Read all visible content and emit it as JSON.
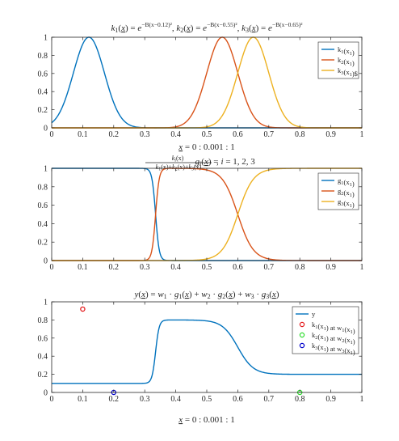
{
  "colors": {
    "blue": "#0072BD",
    "orange": "#D95319",
    "yellow": "#EDB120",
    "red_marker": "#E41A1C",
    "green_marker": "#2CDC2C",
    "blue_marker": "#0000CC",
    "axis": "#262626"
  },
  "chart_data": [
    {
      "type": "line",
      "title": "k1(x̲) = e^−B(x̲−0.12)², k2(x̲) = e^−B(x̲−0.55)², k3(x̲) = e^−B(x̲−0.65)²",
      "xlabel": "x̲ = 0 : 0.001 : 1",
      "ylabel": "",
      "xlim": [
        0,
        1
      ],
      "ylim": [
        0,
        1
      ],
      "xticks": [
        "0",
        "0.1",
        "0.2",
        "0.3",
        "0.4",
        "0.5",
        "0.6",
        "0.7",
        "0.8",
        "0.9",
        "1"
      ],
      "yticks": [
        "0",
        "0.2",
        "0.4",
        "0.6",
        "0.8",
        "1"
      ],
      "grid": false,
      "legend_position": "top-right",
      "gaussian_B": 200,
      "series": [
        {
          "name": "k1(x1)",
          "center": 0.12,
          "color": "#0072BD"
        },
        {
          "name": "k2(x1)",
          "center": 0.55,
          "color": "#D95319"
        },
        {
          "name": "k3(x1)$",
          "center": 0.65,
          "color": "#EDB120"
        }
      ]
    },
    {
      "type": "line",
      "title": "gi(x̲) = ki(x̲) / (k1(x̲)+k2(x̲)+k3(x̲)), i = 1,2,3",
      "xlabel": "",
      "ylabel": "",
      "xlim": [
        0,
        1
      ],
      "ylim": [
        0,
        1
      ],
      "xticks": [
        "0",
        "0.1",
        "0.2",
        "0.3",
        "0.4",
        "0.5",
        "0.6",
        "0.7",
        "0.8",
        "0.9",
        "1"
      ],
      "yticks": [
        "0",
        "0.2",
        "0.4",
        "0.6",
        "0.8",
        "1"
      ],
      "grid": false,
      "legend_position": "top-right",
      "series": [
        {
          "name": "g1(x1)",
          "color": "#0072BD"
        },
        {
          "name": "g2(x1)",
          "color": "#D95319"
        },
        {
          "name": "g3(x1)",
          "color": "#EDB120"
        }
      ]
    },
    {
      "type": "line",
      "title": "y(x̲) = w1 · g1(x̲) + w2 · g2(x̲) + w3 · g3(x̲)",
      "xlabel": "x̲ = 0 : 0.001 : 1",
      "ylabel": "",
      "xlim": [
        0,
        1
      ],
      "ylim": [
        0,
        1
      ],
      "xticks": [
        "0",
        "0.1",
        "0.2",
        "0.3",
        "0.4",
        "0.5",
        "0.6",
        "0.7",
        "0.8",
        "0.9",
        "1"
      ],
      "yticks": [
        "0",
        "0.2",
        "0.4",
        "0.6",
        "0.8",
        "1"
      ],
      "grid": false,
      "legend_position": "top-right",
      "weights": [
        0.1,
        0.8,
        0.2
      ],
      "series": [
        {
          "name": "y",
          "color": "#0072BD",
          "kind": "line"
        }
      ],
      "markers": [
        {
          "name": "k1(x1) at w1(x1)",
          "x": 0.1,
          "y": 0.92,
          "color": "#E41A1C"
        },
        {
          "name": "k2(x1) at w2(x1)",
          "x": 0.8,
          "y": 0.0,
          "color": "#2CDC2C"
        },
        {
          "name": "k3(x1) at w3(x1)",
          "x": 0.2,
          "y": 0.0,
          "color": "#0000CC"
        }
      ]
    }
  ]
}
